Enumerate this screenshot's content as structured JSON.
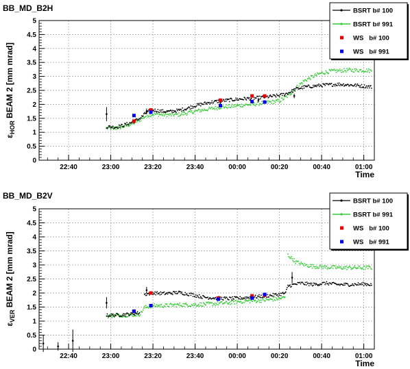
{
  "chart_data": [
    {
      "type": "scatter",
      "title": "BB_MD_B2H",
      "ylabel_main": "ε",
      "ylabel_sub": "HOR",
      "ylabel_rest": " BEAM 2 [mm mrad]",
      "xlabel": "Time",
      "xlim": [
        "22:26",
        "01:05"
      ],
      "ylim": [
        0,
        5
      ],
      "yticks": [
        "0",
        "0.5",
        "1",
        "1.5",
        "2",
        "2.5",
        "3",
        "3.5",
        "4",
        "4.5",
        "5"
      ],
      "xticks": [
        "22:40",
        "23:00",
        "23:20",
        "23:40",
        "00:00",
        "00:20",
        "00:40",
        "01:00"
      ],
      "grid": true,
      "legend": [
        "BSRT b# 100",
        "BSRT b# 991",
        "WS   b# 100",
        "WS   b# 991"
      ],
      "colors": {
        "bsrt100": "#000000",
        "bsrt991": "#33cc33",
        "ws100": "#ee0000",
        "ws991": "#0000ee"
      },
      "series": [
        {
          "name": "BSRT b# 100",
          "marker": "line-dots",
          "points": [
            [
              "22:58",
              1.2
            ],
            [
              "23:02",
              1.18
            ],
            [
              "23:06",
              1.25
            ],
            [
              "23:10",
              1.35
            ],
            [
              "23:14",
              1.5
            ],
            [
              "23:17",
              1.72
            ],
            [
              "23:20",
              1.8
            ],
            [
              "23:24",
              1.75
            ],
            [
              "23:28",
              1.74
            ],
            [
              "23:32",
              1.78
            ],
            [
              "23:36",
              1.85
            ],
            [
              "23:40",
              1.95
            ],
            [
              "23:44",
              2.02
            ],
            [
              "23:48",
              2.08
            ],
            [
              "23:52",
              2.12
            ],
            [
              "23:56",
              2.15
            ],
            [
              "00:00",
              2.18
            ],
            [
              "00:04",
              2.2
            ],
            [
              "00:08",
              2.22
            ],
            [
              "00:12",
              2.25
            ],
            [
              "00:16",
              2.28
            ],
            [
              "00:20",
              2.32
            ],
            [
              "00:24",
              2.4
            ],
            [
              "00:28",
              2.55
            ],
            [
              "00:32",
              2.62
            ],
            [
              "00:36",
              2.65
            ],
            [
              "00:40",
              2.68
            ],
            [
              "00:44",
              2.7
            ],
            [
              "00:48",
              2.72
            ],
            [
              "00:52",
              2.7
            ],
            [
              "00:56",
              2.68
            ],
            [
              "01:00",
              2.65
            ],
            [
              "01:04",
              2.62
            ]
          ],
          "errors": [
            [
              "22:58",
              1.65,
              0.25
            ],
            [
              "23:17",
              1.75,
              0.1
            ],
            [
              "23:52",
              2.0,
              0.1
            ],
            [
              "00:10",
              2.15,
              0.08
            ],
            [
              "00:27",
              2.3,
              0.08
            ]
          ]
        },
        {
          "name": "BSRT b# 991",
          "marker": "dots",
          "points": [
            [
              "22:58",
              1.15
            ],
            [
              "23:02",
              1.15
            ],
            [
              "23:06",
              1.2
            ],
            [
              "23:10",
              1.3
            ],
            [
              "23:14",
              1.45
            ],
            [
              "23:17",
              1.6
            ],
            [
              "23:20",
              1.65
            ],
            [
              "23:24",
              1.63
            ],
            [
              "23:28",
              1.62
            ],
            [
              "23:32",
              1.63
            ],
            [
              "23:36",
              1.68
            ],
            [
              "23:40",
              1.75
            ],
            [
              "23:44",
              1.8
            ],
            [
              "23:48",
              1.85
            ],
            [
              "23:52",
              1.9
            ],
            [
              "23:56",
              1.92
            ],
            [
              "00:00",
              1.95
            ],
            [
              "00:04",
              1.98
            ],
            [
              "00:08",
              2.0
            ],
            [
              "00:12",
              2.05
            ],
            [
              "00:16",
              2.08
            ],
            [
              "00:20",
              2.12
            ],
            [
              "00:24",
              2.3
            ],
            [
              "00:28",
              2.6
            ],
            [
              "00:32",
              2.85
            ],
            [
              "00:36",
              3.0
            ],
            [
              "00:40",
              3.12
            ],
            [
              "00:44",
              3.18
            ],
            [
              "00:48",
              3.2
            ],
            [
              "00:52",
              3.22
            ],
            [
              "00:56",
              3.22
            ],
            [
              "01:00",
              3.22
            ],
            [
              "01:04",
              3.2
            ]
          ]
        },
        {
          "name": "WS   b# 100",
          "marker": "square",
          "points": [
            [
              "23:11",
              1.4
            ],
            [
              "23:19",
              1.8
            ],
            [
              "23:52",
              2.15
            ],
            [
              "00:07",
              2.3
            ],
            [
              "00:13",
              2.3
            ]
          ]
        },
        {
          "name": "WS   b# 991",
          "marker": "square",
          "points": [
            [
              "23:11",
              1.6
            ],
            [
              "23:19",
              1.72
            ],
            [
              "23:52",
              1.95
            ],
            [
              "00:07",
              2.1
            ],
            [
              "00:13",
              2.08
            ]
          ]
        }
      ]
    },
    {
      "type": "scatter",
      "title": "BB_MD_B2V",
      "ylabel_main": "ε",
      "ylabel_sub": "VER",
      "ylabel_rest": " BEAM 2 [mm mrad]",
      "xlabel": "Time",
      "xlim": [
        "22:26",
        "01:05"
      ],
      "ylim": [
        0,
        5
      ],
      "yticks": [
        "0",
        "0.5",
        "1",
        "1.5",
        "2",
        "2.5",
        "3",
        "3.5",
        "4",
        "4.5",
        "5"
      ],
      "xticks": [
        "22:40",
        "23:00",
        "23:20",
        "23:40",
        "00:00",
        "00:20",
        "00:40",
        "01:00"
      ],
      "grid": true,
      "legend": [
        "BSRT b# 100",
        "BSRT b# 991",
        "WS   b# 100",
        "WS   b# 991"
      ],
      "colors": {
        "bsrt100": "#000000",
        "bsrt991": "#33cc33",
        "ws100": "#ee0000",
        "ws991": "#0000ee"
      },
      "series": [
        {
          "name": "BSRT b# 100",
          "marker": "line-dots",
          "points": [
            [
              "22:58",
              1.2
            ],
            [
              "23:04",
              1.22
            ],
            [
              "23:10",
              1.25
            ],
            [
              "23:14",
              1.3
            ],
            [
              "23:16",
              1.95
            ],
            [
              "23:20",
              2.0
            ],
            [
              "23:26",
              1.98
            ],
            [
              "23:32",
              2.02
            ],
            [
              "23:38",
              1.95
            ],
            [
              "23:44",
              1.85
            ],
            [
              "23:50",
              1.82
            ],
            [
              "23:56",
              1.8
            ],
            [
              "00:02",
              1.82
            ],
            [
              "00:08",
              1.86
            ],
            [
              "00:14",
              1.9
            ],
            [
              "00:20",
              1.95
            ],
            [
              "00:23",
              2.0
            ],
            [
              "00:24",
              2.25
            ],
            [
              "00:30",
              2.35
            ],
            [
              "00:36",
              2.3
            ],
            [
              "00:42",
              2.35
            ],
            [
              "00:48",
              2.3
            ],
            [
              "00:54",
              2.3
            ],
            [
              "01:00",
              2.32
            ],
            [
              "01:04",
              2.3
            ]
          ],
          "errors": [
            [
              "22:28",
              0.2,
              0.3
            ],
            [
              "22:35",
              0.1,
              0.15
            ],
            [
              "22:42",
              0.3,
              0.4
            ],
            [
              "22:58",
              1.65,
              0.2
            ],
            [
              "23:17",
              2.1,
              0.12
            ],
            [
              "00:26",
              2.55,
              0.2
            ]
          ]
        },
        {
          "name": "BSRT b# 991",
          "marker": "dots",
          "points": [
            [
              "22:58",
              1.18
            ],
            [
              "23:04",
              1.2
            ],
            [
              "23:10",
              1.22
            ],
            [
              "23:14",
              1.25
            ],
            [
              "23:16",
              1.48
            ],
            [
              "23:20",
              1.55
            ],
            [
              "23:26",
              1.55
            ],
            [
              "23:32",
              1.58
            ],
            [
              "23:38",
              1.58
            ],
            [
              "23:44",
              1.6
            ],
            [
              "23:50",
              1.62
            ],
            [
              "23:56",
              1.65
            ],
            [
              "00:02",
              1.7
            ],
            [
              "00:08",
              1.72
            ],
            [
              "00:14",
              1.75
            ],
            [
              "00:20",
              1.8
            ],
            [
              "00:23",
              1.85
            ],
            [
              "00:24",
              3.35
            ],
            [
              "00:28",
              3.1
            ],
            [
              "00:32",
              3.0
            ],
            [
              "00:36",
              2.95
            ],
            [
              "00:42",
              2.92
            ],
            [
              "00:48",
              2.9
            ],
            [
              "00:54",
              2.9
            ],
            [
              "01:00",
              2.9
            ],
            [
              "01:04",
              2.9
            ]
          ]
        },
        {
          "name": "WS   b# 100",
          "marker": "square",
          "points": [
            [
              "23:11",
              1.35
            ],
            [
              "23:19",
              2.0
            ],
            [
              "23:51",
              1.82
            ],
            [
              "00:07",
              1.9
            ],
            [
              "00:13",
              1.92
            ]
          ]
        },
        {
          "name": "WS   b# 991",
          "marker": "square",
          "points": [
            [
              "23:11",
              1.35
            ],
            [
              "23:19",
              1.55
            ],
            [
              "23:51",
              1.78
            ],
            [
              "00:07",
              1.82
            ],
            [
              "00:13",
              1.95
            ]
          ]
        }
      ]
    }
  ]
}
